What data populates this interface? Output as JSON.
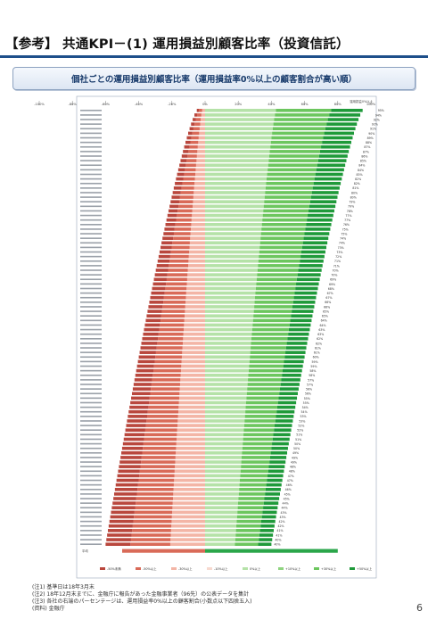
{
  "header": {
    "title": "【参考】 共通KPI－(1) 運用損益別顧客比率（投資信託）"
  },
  "subtitle": "個社ごとの運用損益別顧客比率（運用損益率0%以上の顧客割合が高い順）",
  "chart_data": {
    "type": "bar",
    "orientation": "horizontal-diverging",
    "x_ticks": [
      "-100%",
      "-80%",
      "-60%",
      "-40%",
      "-20%",
      "0%",
      "20%",
      "40%",
      "60%",
      "80%",
      "100%"
    ],
    "total_label": "運用損益0%以上",
    "n_companies": 96,
    "positive_share_first": 0.95,
    "positive_share_last": 0.4,
    "average_label": "平均",
    "legend": [
      "-50%未満",
      "-50%以上",
      "-30%以上",
      "-10%以上",
      "0%以上",
      "+10%以上",
      "+30%以上",
      "+50%以上"
    ],
    "colors": {
      "neg_dark": "#b9473d",
      "neg_mid": "#d96a58",
      "neg_light": "#f3b5a6",
      "pos_light": "#b5e2a8",
      "pos_mid": "#6cc65e",
      "pos_dark": "#1f9a3a",
      "average": "#2aa64a"
    }
  },
  "notes": [
    "(注1) 基準日は18年3月末",
    "(注2) 18年12月末までに、金融庁に報告があった金融事業者（96先）の公表データを集計",
    "(注3) 各社の右端のパーセンテージは、運用損益率0%以上の顧客割合(小数点以下四捨五入)",
    "(資料) 金融庁"
  ],
  "page_number": "6"
}
